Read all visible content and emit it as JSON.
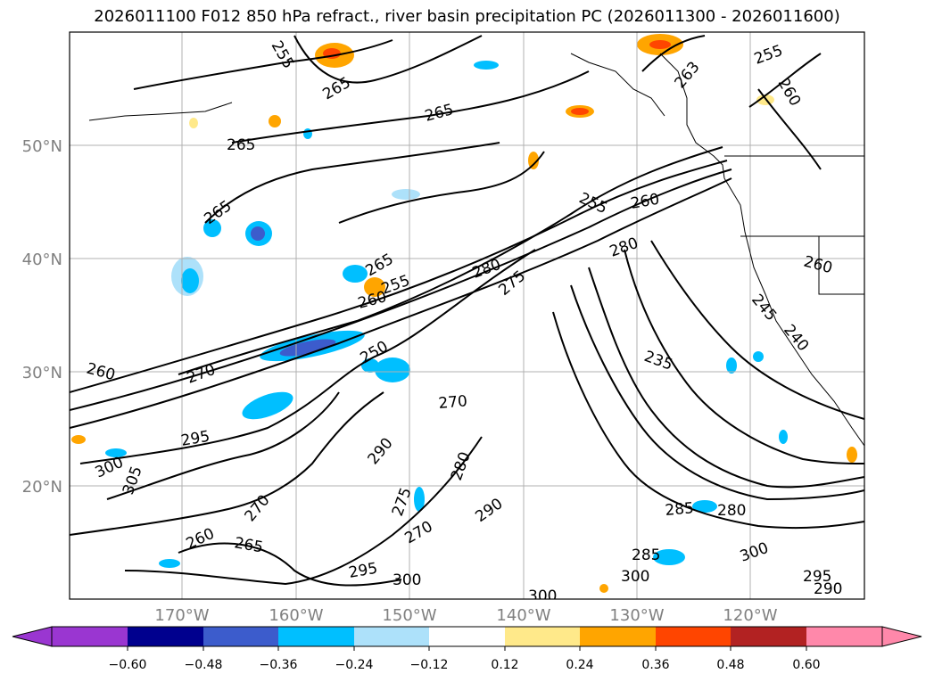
{
  "title": "2026011100 F012 850 hPa refract., river basin precipitation PC (2026011300 - 2026011600)",
  "map": {
    "lat_ticks": [
      "50°N",
      "40°N",
      "30°N",
      "20°N"
    ],
    "lon_ticks": [
      "170°W",
      "160°W",
      "150°W",
      "140°W",
      "130°W",
      "120°W"
    ],
    "grid": true,
    "contour_labels": [
      "265",
      "265",
      "265",
      "265",
      "260",
      "255",
      "255",
      "260",
      "255",
      "260",
      "280",
      "275",
      "280",
      "260",
      "245",
      "240",
      "235",
      "260",
      "270",
      "270",
      "250",
      "295",
      "300",
      "305",
      "290",
      "280",
      "275",
      "270",
      "290",
      "270",
      "260",
      "265",
      "295",
      "300",
      "300",
      "300",
      "285",
      "280",
      "300",
      "295",
      "290",
      "285",
      "265",
      "263",
      "255"
    ]
  },
  "colorbar": {
    "ticks": [
      "−0.60",
      "−0.48",
      "−0.36",
      "−0.24",
      "−0.12",
      "0.12",
      "0.24",
      "0.36",
      "0.48",
      "0.60"
    ],
    "colors": [
      "#9a36d1",
      "#00008e",
      "#3c5ccc",
      "#00bfff",
      "#ade1fa",
      "#ffffff",
      "#ffe98a",
      "#ffa500",
      "#ff4500",
      "#b22222",
      "#ff88aa"
    ]
  }
}
